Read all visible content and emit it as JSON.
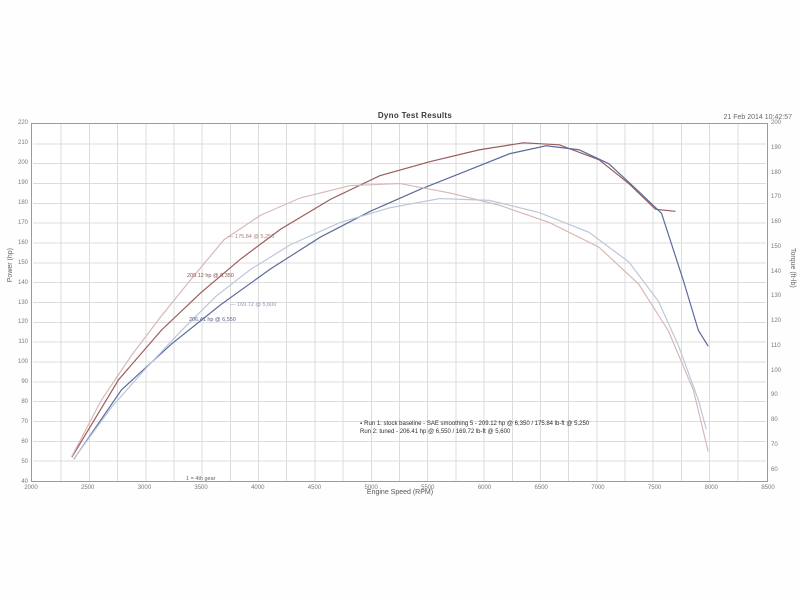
{
  "header": {
    "title": "Dyno Test Results",
    "meta": "21 Feb 2014  10:42:57"
  },
  "axes": {
    "x": {
      "title": "Engine Speed (RPM)",
      "min": 2000,
      "max": 8500,
      "grid_step": 250,
      "label_step": 500
    },
    "y_left": {
      "title": "Power (hp)",
      "min": 40,
      "max": 220,
      "step": 10
    },
    "y_right": {
      "title": "Torque (ft-lb)",
      "min": 55,
      "max": 200,
      "step": 10
    }
  },
  "colors": {
    "grid": "#dcdcdc",
    "plot_border": "#9b9b9b",
    "run1_power": "#9a5c5c",
    "run2_power": "#5c6c9a",
    "run1_torque": "#d8b8b8",
    "run2_torque": "#bcc6da",
    "text": "#555555"
  },
  "notes": {
    "marker": "▪",
    "line1": "Run 1: stock baseline - SAE smoothing 5 - 209.12 hp @ 6,350 / 175.84 lb-ft @ 5,250",
    "line2": "Run 2: tuned - 206.41 hp @ 6,550 / 169.72 lb-ft @ 5,600"
  },
  "corner_note": "1 = 4th gear",
  "chart_data": {
    "type": "line",
    "title": "Dyno Test Results",
    "xlabel": "Engine Speed (RPM)",
    "ylabel_left": "Power (hp)",
    "ylabel_right": "Torque (ft-lb)",
    "x_range": [
      2000,
      8500
    ],
    "y_left_range": [
      40,
      220
    ],
    "y_right_range": [
      55,
      200
    ],
    "grid": true,
    "legend_position": "in-chart annotations",
    "series": [
      {
        "name": "Run 1 Power (hp)",
        "axis": "left",
        "color": "#9a5c5c",
        "points": [
          [
            2344,
            52
          ],
          [
            2758,
            91
          ],
          [
            3138,
            116
          ],
          [
            3490,
            135
          ],
          [
            3843,
            152
          ],
          [
            4196,
            167
          ],
          [
            4637,
            182
          ],
          [
            5078,
            194
          ],
          [
            5519,
            201
          ],
          [
            5960,
            207
          ],
          [
            6350,
            210.5
          ],
          [
            6666,
            209.5
          ],
          [
            7018,
            202
          ],
          [
            7283,
            190
          ],
          [
            7521,
            177
          ],
          [
            7697,
            176
          ]
        ]
      },
      {
        "name": "Run 2 Power (hp)",
        "axis": "left",
        "color": "#5c6c9a",
        "points": [
          [
            2362,
            51
          ],
          [
            2785,
            86
          ],
          [
            3226,
            109
          ],
          [
            3667,
            129
          ],
          [
            4108,
            147
          ],
          [
            4549,
            163
          ],
          [
            4990,
            176
          ],
          [
            5431,
            187
          ],
          [
            5872,
            197
          ],
          [
            6225,
            205
          ],
          [
            6550,
            209
          ],
          [
            6842,
            207
          ],
          [
            7106,
            200
          ],
          [
            7371,
            186
          ],
          [
            7574,
            175
          ],
          [
            7768,
            141
          ],
          [
            7900,
            116
          ],
          [
            7988,
            108
          ]
        ]
      },
      {
        "name": "Run 1 Torque (lb-ft)",
        "axis": "right",
        "color": "#d8b8b8",
        "points": [
          [
            2344,
            65
          ],
          [
            2608,
            88
          ],
          [
            2873,
            106
          ],
          [
            3138,
            122
          ],
          [
            3402,
            137
          ],
          [
            3693,
            153
          ],
          [
            4020,
            163
          ],
          [
            4372,
            170
          ],
          [
            4813,
            175
          ],
          [
            5254,
            175.8
          ],
          [
            5695,
            172
          ],
          [
            6136,
            167
          ],
          [
            6577,
            160
          ],
          [
            7018,
            150
          ],
          [
            7371,
            135
          ],
          [
            7635,
            116
          ],
          [
            7856,
            92
          ],
          [
            7988,
            67
          ]
        ]
      },
      {
        "name": "Run 2 Torque (lb-ft)",
        "axis": "right",
        "color": "#bcc6da",
        "points": [
          [
            2362,
            64
          ],
          [
            2697,
            85
          ],
          [
            3005,
            101
          ],
          [
            3314,
            116
          ],
          [
            3622,
            130
          ],
          [
            3931,
            141
          ],
          [
            4284,
            151
          ],
          [
            4725,
            160
          ],
          [
            5166,
            166
          ],
          [
            5607,
            169.7
          ],
          [
            6048,
            169
          ],
          [
            6489,
            164
          ],
          [
            6930,
            156
          ],
          [
            7283,
            144
          ],
          [
            7547,
            128
          ],
          [
            7724,
            110
          ],
          [
            7900,
            88
          ],
          [
            7971,
            76
          ]
        ]
      }
    ],
    "annotations": [
      {
        "x": 197,
        "y": 111,
        "text": "— 175.84 @ 5,250",
        "color": "#a97f7f"
      },
      {
        "x": 156,
        "y": 150,
        "text": "209.12 hp @ 6,350",
        "color": "#8a5151"
      },
      {
        "x": 199,
        "y": 179,
        "text": "— 169.72 @ 5,600",
        "color": "#8b97b5"
      },
      {
        "x": 158,
        "y": 194,
        "text": "206.41 hp @ 6,550",
        "color": "#535f85"
      }
    ]
  }
}
